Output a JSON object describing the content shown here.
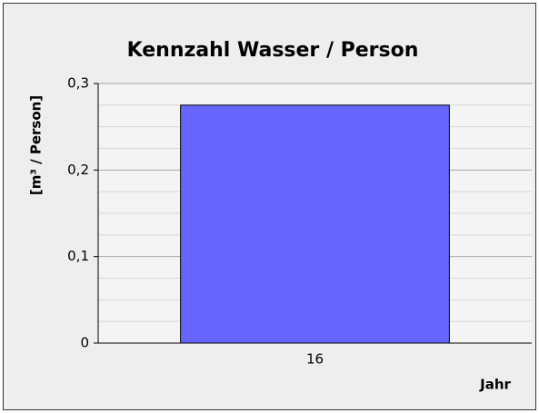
{
  "chart_data": {
    "type": "bar",
    "title": "Kennzahl Wasser / Person",
    "x_label": "Jahr",
    "y_label": "[m³ / Person]",
    "categories": [
      "16"
    ],
    "values": [
      0.275
    ],
    "color": "#6666ff",
    "ylim": [
      0,
      0.3
    ],
    "yticks": [
      0,
      {
        "value": 0.1,
        "label": "0,1"
      },
      {
        "value": 0.2,
        "label": "0,2"
      },
      {
        "value": 0.3,
        "label": "0,3"
      }
    ],
    "minor_yticks": [
      0.025,
      0.05,
      0.075,
      0.125,
      0.15,
      0.175,
      0.225,
      0.25,
      0.275
    ],
    "grid": true
  }
}
